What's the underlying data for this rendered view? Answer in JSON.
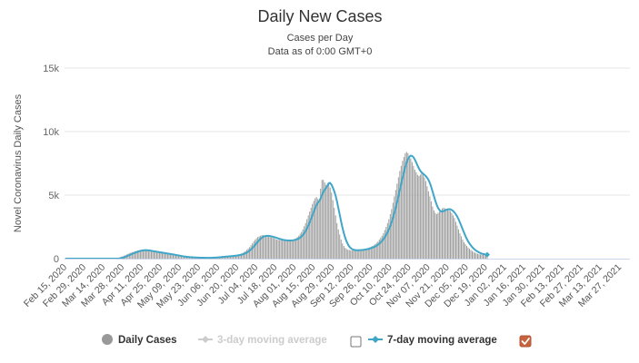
{
  "chart_data": {
    "type": "bar",
    "title": "Daily New Cases",
    "subtitle": "Cases per Day",
    "subtitle2": "Data as of 0:00 GMT+0",
    "xlabel": "",
    "ylabel": "Novel Coronavirus Daily Cases",
    "ylim": [
      0,
      15000
    ],
    "yticks": [
      0,
      5000,
      10000,
      15000
    ],
    "ytick_labels": [
      "0",
      "5k",
      "10k",
      "15k"
    ],
    "xtick_labels": [
      "Feb 15, 2020",
      "Feb 29, 2020",
      "Mar 14, 2020",
      "Mar 28, 2020",
      "Apr 11, 2020",
      "Apr 25, 2020",
      "May 09, 2020",
      "May 23, 2020",
      "Jun 06, 2020",
      "Jun 20, 2020",
      "Jul 04, 2020",
      "Jul 18, 2020",
      "Aug 01, 2020",
      "Aug 15, 2020",
      "Aug 29, 2020",
      "Sep 12, 2020",
      "Sep 26, 2020",
      "Oct 10, 2020",
      "Oct 24, 2020",
      "Nov 07, 2020",
      "Nov 21, 2020",
      "Dec 05, 2020",
      "Dec 19, 2020",
      "Jan 02, 2021",
      "Jan 16, 2021",
      "Jan 30, 2021",
      "Feb 13, 2021",
      "Feb 27, 2021",
      "Mar 13, 2021",
      "Mar 27, 2021"
    ],
    "grid": true,
    "legend_position": "bottom",
    "x_start": "2020-02-15",
    "x_end": "2021-04-04",
    "series": [
      {
        "name": "Daily Cases",
        "type": "bar",
        "color": "#999999",
        "values": [
          0,
          0,
          0,
          0,
          0,
          0,
          0,
          0,
          0,
          0,
          0,
          0,
          0,
          0,
          0,
          0,
          0,
          0,
          0,
          0,
          0,
          0,
          0,
          0,
          0,
          0,
          0,
          0,
          0,
          0,
          0,
          0,
          0,
          0,
          0,
          0,
          0,
          0,
          0,
          0,
          120,
          150,
          190,
          230,
          280,
          330,
          380,
          420,
          470,
          510,
          540,
          580,
          600,
          640,
          660,
          690,
          700,
          680,
          660,
          640,
          620,
          600,
          580,
          560,
          540,
          530,
          510,
          490,
          470,
          450,
          430,
          420,
          400,
          380,
          370,
          350,
          330,
          310,
          290,
          270,
          250,
          230,
          210,
          190,
          170,
          150,
          140,
          130,
          120,
          110,
          100,
          95,
          90,
          85,
          80,
          80,
          75,
          70,
          70,
          70,
          65,
          60,
          60,
          60,
          65,
          70,
          70,
          80,
          90,
          100,
          110,
          120,
          130,
          140,
          150,
          160,
          170,
          180,
          190,
          200,
          210,
          220,
          230,
          240,
          260,
          280,
          300,
          330,
          360,
          400,
          450,
          520,
          600,
          700,
          800,
          900,
          1050,
          1200,
          1350,
          1480,
          1600,
          1700,
          1750,
          1800,
          1850,
          1850,
          1800,
          1780,
          1750,
          1720,
          1700,
          1680,
          1650,
          1600,
          1550,
          1500,
          1480,
          1460,
          1450,
          1440,
          1420,
          1420,
          1420,
          1430,
          1440,
          1460,
          1480,
          1500,
          1550,
          1600,
          1700,
          1800,
          1950,
          2100,
          2300,
          2550,
          2800,
          3100,
          3400,
          3700,
          4000,
          4300,
          4550,
          4750,
          4850,
          4700,
          4500,
          5500,
          6200,
          6200,
          6000,
          5800,
          5900,
          6000,
          5600,
          5200,
          4600,
          4000,
          3400,
          2800,
          2300,
          1900,
          1500,
          1200,
          1000,
          850,
          760,
          700,
          680,
          660,
          650,
          650,
          660,
          670,
          680,
          690,
          700,
          710,
          730,
          750,
          780,
          810,
          850,
          900,
          950,
          1000,
          1050,
          1150,
          1250,
          1350,
          1500,
          1650,
          1800,
          2000,
          2250,
          2500,
          2800,
          3100,
          3500,
          3900,
          4400,
          4900,
          5400,
          5900,
          6400,
          6900,
          7300,
          7700,
          8000,
          8300,
          8400,
          8300,
          8100,
          7900,
          7600,
          7300,
          7000,
          6800,
          6600,
          6500,
          6600,
          6700,
          6600,
          6400,
          6100,
          5700,
          5300,
          4900,
          4500,
          4100,
          3800,
          3600,
          3500,
          3600,
          3700,
          3800,
          3950,
          4000,
          3950,
          3900,
          3850,
          3800,
          3750,
          3600,
          3400,
          3200,
          2900,
          2600,
          2300,
          2000,
          1750,
          1500,
          1300,
          1150,
          1000,
          880,
          780,
          680,
          600,
          530,
          470,
          420,
          380,
          350,
          330,
          320,
          310,
          300,
          300,
          300
        ]
      },
      {
        "name": "3-day moving average",
        "type": "line",
        "color": "#cccccc",
        "visible": false
      },
      {
        "name": "7-day moving average",
        "type": "line",
        "color": "#3fa6c8",
        "visible": true
      }
    ]
  },
  "legend": {
    "daily_label": "Daily Cases",
    "ma3_label": "3-day moving average",
    "ma7_label": "7-day moving average"
  }
}
